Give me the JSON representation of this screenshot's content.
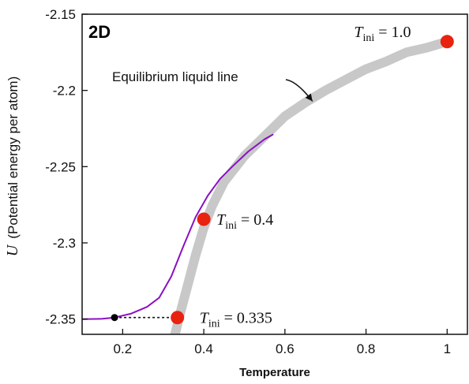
{
  "chart_data": {
    "type": "line",
    "panel_label": "2D",
    "xlabel": "Temperature",
    "ylabel_symbol": "U",
    "ylabel": "(Potential energy per atom)",
    "xlim": [
      0.1,
      1.05
    ],
    "ylim": [
      -2.36,
      -2.15
    ],
    "xticks": [
      0.2,
      0.4,
      0.6,
      0.8,
      1.0
    ],
    "xtick_labels": [
      "0.2",
      "0.4",
      "0.6",
      "0.8",
      "1"
    ],
    "yticks": [
      -2.15,
      -2.2,
      -2.25,
      -2.3,
      -2.35
    ],
    "ytick_labels": [
      "-2.15",
      "-2.2",
      "-2.25",
      "-2.3",
      "-2.35"
    ],
    "colors": {
      "equilibrium_line": "#c8c8c8",
      "cooling_curve": "#8a10c4",
      "marker": "#e8230f",
      "end_marker": "#000000"
    },
    "series": [
      {
        "name": "Equilibrium liquid line",
        "style": "thick-gray",
        "x": [
          0.32,
          0.34,
          0.36,
          0.38,
          0.4,
          0.42,
          0.45,
          0.5,
          0.55,
          0.6,
          0.65,
          0.7,
          0.75,
          0.8,
          0.85,
          0.9,
          0.95,
          1.0
        ],
        "y": [
          -2.37,
          -2.348,
          -2.328,
          -2.308,
          -2.29,
          -2.276,
          -2.26,
          -2.243,
          -2.23,
          -2.217,
          -2.208,
          -2.2,
          -2.193,
          -2.186,
          -2.181,
          -2.175,
          -2.172,
          -2.168
        ]
      },
      {
        "style": "purple-thin",
        "x": [
          0.1,
          0.15,
          0.18,
          0.22,
          0.26,
          0.29,
          0.32,
          0.35,
          0.38,
          0.41,
          0.44,
          0.47,
          0.51,
          0.55,
          0.57
        ],
        "y": [
          -2.35,
          -2.3498,
          -2.349,
          -2.3465,
          -2.342,
          -2.336,
          -2.322,
          -2.302,
          -2.283,
          -2.269,
          -2.258,
          -2.25,
          -2.24,
          -2.232,
          -2.229
        ]
      },
      {
        "style": "black-dotted",
        "x": [
          0.18,
          0.335
        ],
        "y": [
          -2.349,
          -2.349
        ]
      }
    ],
    "markers": [
      {
        "x": 1.0,
        "y": -2.168,
        "label_var": "T",
        "label_sub": "ini",
        "label_rest": " = 1.0"
      },
      {
        "x": 0.4,
        "y": -2.2845,
        "label_var": "T",
        "label_sub": "ini",
        "label_rest": " = 0.4"
      },
      {
        "x": 0.335,
        "y": -2.349,
        "label_var": "T",
        "label_sub": "ini",
        "label_rest": " = 0.335"
      }
    ],
    "end_point": {
      "x": 0.18,
      "y": -2.349
    },
    "curve_label": "Equilibrium liquid line"
  }
}
